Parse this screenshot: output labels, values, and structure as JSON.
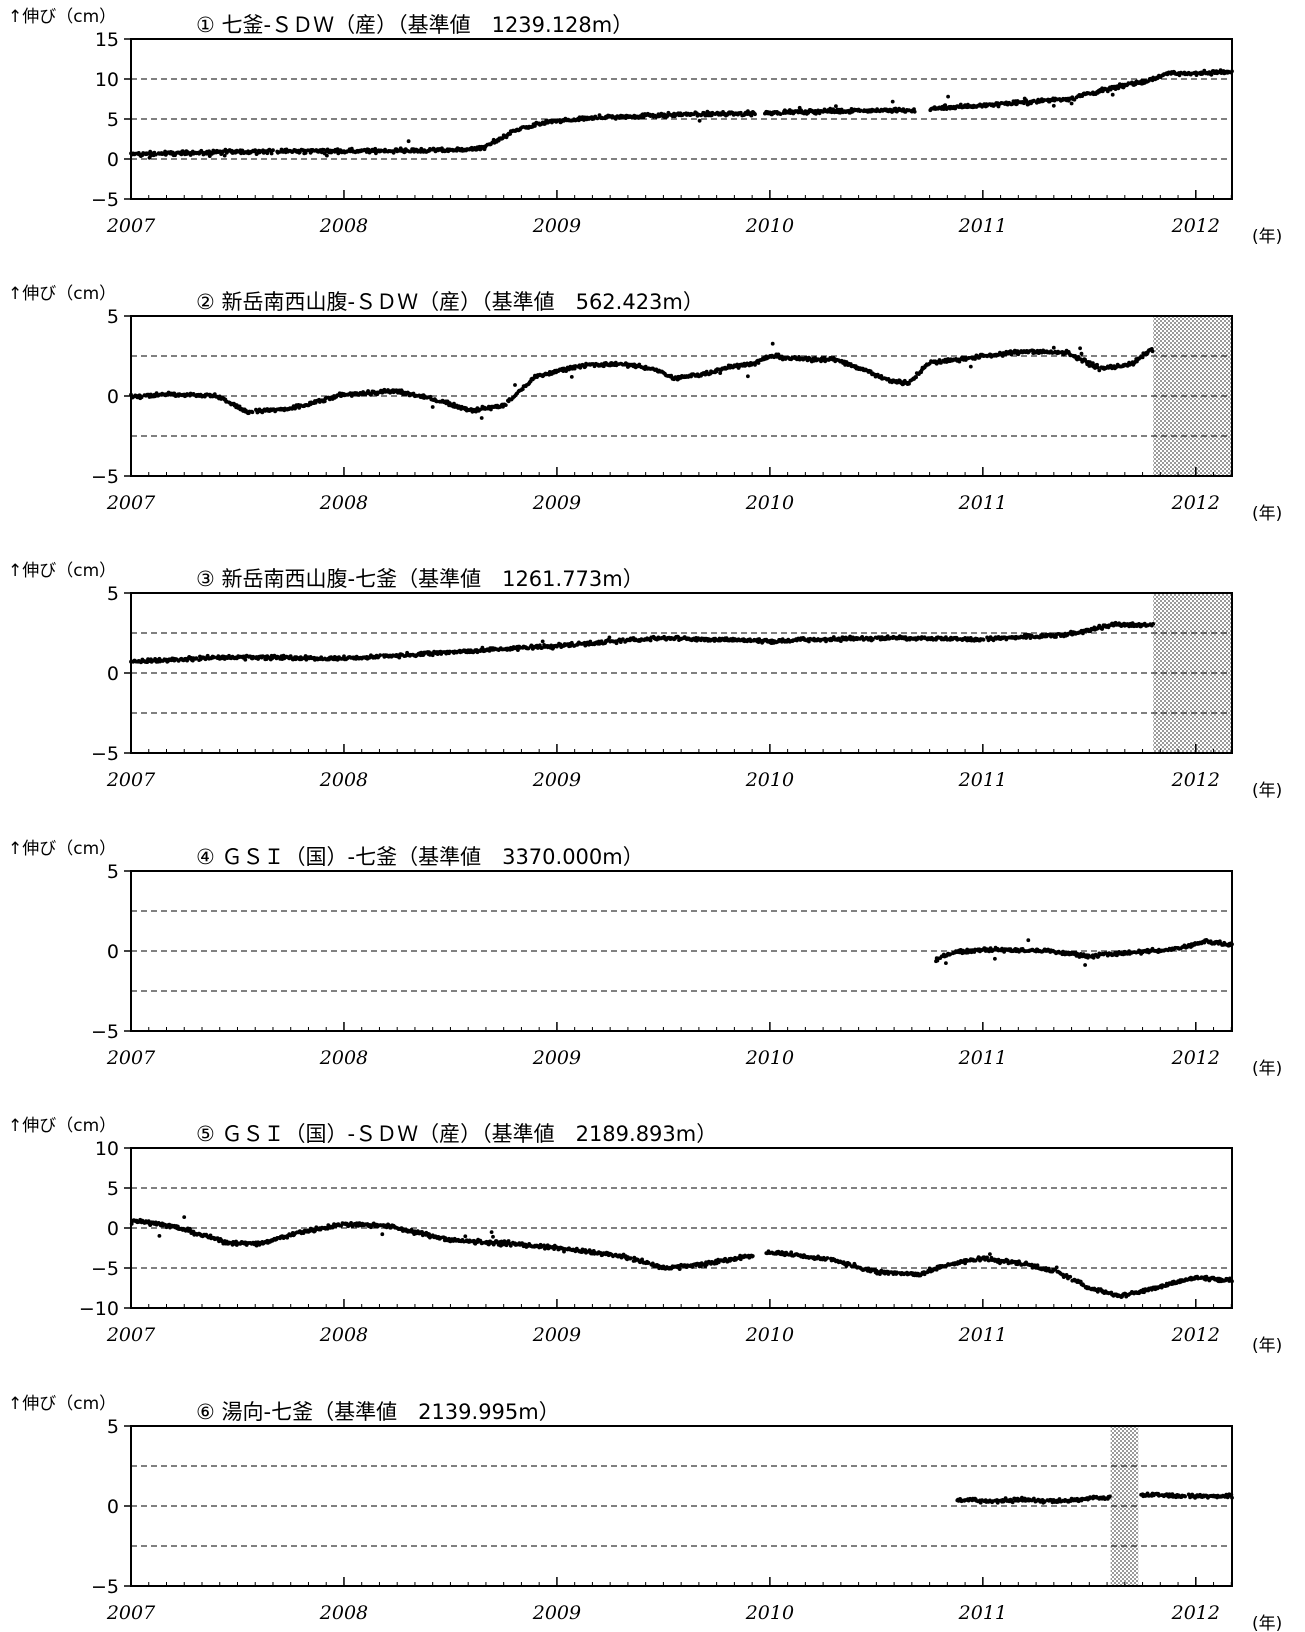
{
  "y_axis_label": "↑伸び（cm）",
  "x_unit_label": "(年)",
  "colors": {
    "data": "#000000",
    "hatch": "#9a9a9a",
    "grid": "#000000"
  },
  "chart_data": [
    {
      "type": "scatter",
      "title": "① 七釜-ＳＤＷ（産）（基準値　1239.128m）",
      "xlabel": "(年)",
      "ylabel": "↑伸び（cm）",
      "xlim": [
        2007,
        2012.17
      ],
      "ylim": [
        -5,
        15
      ],
      "yticks": [
        "15",
        "10",
        "5",
        "0",
        "−5"
      ],
      "yticks_values": [
        15,
        10,
        5,
        0,
        -5
      ],
      "gridlines_dashed": [
        10,
        5,
        0
      ],
      "xticks": [
        "2007",
        "2008",
        "2009",
        "2010",
        "2011",
        "2012"
      ],
      "xticks_values": [
        2007,
        2008,
        2009,
        2010,
        2011,
        2012
      ],
      "shaded_periods": [],
      "series": [
        {
          "x": [
            2007.0,
            2007.5,
            2008.0,
            2008.5,
            2008.65,
            2008.8,
            2008.95,
            2009.2,
            2009.5,
            2009.9,
            2010.0,
            2010.5,
            2010.7,
            2010.8,
            2011.0,
            2011.4,
            2011.6,
            2011.8,
            2011.85,
            2012.17
          ],
          "y": [
            0.6,
            0.9,
            1.0,
            1.1,
            1.3,
            3.5,
            4.6,
            5.2,
            5.5,
            5.7,
            5.8,
            6.1,
            6.0,
            6.4,
            6.7,
            7.5,
            8.8,
            10.0,
            10.6,
            10.9
          ]
        }
      ]
    },
    {
      "type": "scatter",
      "title": "② 新岳南西山腹-ＳＤＷ（産）（基準値　562.423m）",
      "xlabel": "(年)",
      "ylabel": "↑伸び（cm）",
      "xlim": [
        2007,
        2012.17
      ],
      "ylim": [
        -5,
        5
      ],
      "yticks": [
        "5",
        "0",
        "−5"
      ],
      "yticks_values": [
        5,
        0,
        -5
      ],
      "gridlines_dashed": [
        2.5,
        0,
        -2.5
      ],
      "xticks": [
        "2007",
        "2008",
        "2009",
        "2010",
        "2011",
        "2012"
      ],
      "xticks_values": [
        2007,
        2008,
        2009,
        2010,
        2011,
        2012
      ],
      "shaded_periods": [
        [
          2011.8,
          2012.17
        ]
      ],
      "series": [
        {
          "x": [
            2007.0,
            2007.2,
            2007.4,
            2007.55,
            2007.75,
            2008.0,
            2008.25,
            2008.45,
            2008.6,
            2008.75,
            2008.9,
            2009.1,
            2009.3,
            2009.45,
            2009.55,
            2009.7,
            2009.8,
            2009.92,
            2010.0,
            2010.15,
            2010.3,
            2010.45,
            2010.55,
            2010.65,
            2010.75,
            2010.9,
            2011.0,
            2011.2,
            2011.4,
            2011.55,
            2011.7,
            2011.8
          ],
          "y": [
            0.0,
            0.1,
            0.0,
            -1.0,
            -0.8,
            0.1,
            0.3,
            -0.3,
            -0.9,
            -0.6,
            1.2,
            1.9,
            2.0,
            1.7,
            1.1,
            1.4,
            1.8,
            2.0,
            2.5,
            2.3,
            2.3,
            1.6,
            1.0,
            0.8,
            2.1,
            2.3,
            2.5,
            2.8,
            2.7,
            1.7,
            2.0,
            3.0
          ]
        }
      ]
    },
    {
      "type": "scatter",
      "title": "③ 新岳南西山腹-七釜（基準値　1261.773m）",
      "xlabel": "(年)",
      "ylabel": "↑伸び（cm）",
      "xlim": [
        2007,
        2012.17
      ],
      "ylim": [
        -5,
        5
      ],
      "yticks": [
        "5",
        "0",
        "−5"
      ],
      "yticks_values": [
        5,
        0,
        -5
      ],
      "gridlines_dashed": [
        2.5,
        0,
        -2.5
      ],
      "xticks": [
        "2007",
        "2008",
        "2009",
        "2010",
        "2011",
        "2012"
      ],
      "xticks_values": [
        2007,
        2008,
        2009,
        2010,
        2011,
        2012
      ],
      "shaded_periods": [
        [
          2011.8,
          2012.17
        ]
      ],
      "series": [
        {
          "x": [
            2007.0,
            2007.5,
            2008.0,
            2008.5,
            2009.0,
            2009.5,
            2010.0,
            2010.5,
            2011.0,
            2011.4,
            2011.6,
            2011.8
          ],
          "y": [
            0.7,
            1.0,
            0.9,
            1.3,
            1.7,
            2.2,
            2.0,
            2.2,
            2.1,
            2.4,
            3.0,
            3.0
          ]
        }
      ]
    },
    {
      "type": "scatter",
      "title": "④ ＧＳＩ（国）-七釜（基準値　3370.000m）",
      "xlabel": "(年)",
      "ylabel": "↑伸び（cm）",
      "xlim": [
        2007,
        2012.17
      ],
      "ylim": [
        -5,
        5
      ],
      "yticks": [
        "5",
        "0",
        "−5"
      ],
      "yticks_values": [
        5,
        0,
        -5
      ],
      "gridlines_dashed": [
        2.5,
        0,
        -2.5
      ],
      "xticks": [
        "2007",
        "2008",
        "2009",
        "2010",
        "2011",
        "2012"
      ],
      "xticks_values": [
        2007,
        2008,
        2009,
        2010,
        2011,
        2012
      ],
      "shaded_periods": [],
      "series": [
        {
          "x": [
            2010.78,
            2010.85,
            2011.0,
            2011.3,
            2011.5,
            2011.7,
            2011.9,
            2012.05,
            2012.17
          ],
          "y": [
            -0.6,
            -0.1,
            0.1,
            0.0,
            -0.3,
            -0.1,
            0.1,
            0.6,
            0.4
          ]
        }
      ]
    },
    {
      "type": "scatter",
      "title": "⑤ ＧＳＩ（国）-ＳＤＷ（産）（基準値　2189.893m）",
      "xlabel": "(年)",
      "ylabel": "↑伸び（cm）",
      "xlim": [
        2007,
        2012.17
      ],
      "ylim": [
        -10,
        10
      ],
      "yticks": [
        "10",
        "5",
        "0",
        "−5",
        "−10"
      ],
      "yticks_values": [
        10,
        5,
        0,
        -5,
        -10
      ],
      "gridlines_dashed": [
        5,
        0,
        -5
      ],
      "xticks": [
        "2007",
        "2008",
        "2009",
        "2010",
        "2011",
        "2012"
      ],
      "xticks_values": [
        2007,
        2008,
        2009,
        2010,
        2011,
        2012
      ],
      "shaded_periods": [],
      "series": [
        {
          "x": [
            2007.0,
            2007.2,
            2007.45,
            2007.6,
            2007.8,
            2008.0,
            2008.2,
            2008.5,
            2008.8,
            2009.0,
            2009.3,
            2009.5,
            2009.7,
            2009.9,
            2010.0,
            2010.3,
            2010.5,
            2010.7,
            2010.85,
            2011.0,
            2011.2,
            2011.35,
            2011.5,
            2011.65,
            2011.8,
            2012.0,
            2012.17
          ],
          "y": [
            1.0,
            0.2,
            -1.8,
            -2.0,
            -0.5,
            0.5,
            0.3,
            -1.5,
            -2.0,
            -2.5,
            -3.5,
            -5.0,
            -4.5,
            -3.5,
            -3.0,
            -4.0,
            -5.5,
            -5.8,
            -4.5,
            -3.8,
            -4.5,
            -5.5,
            -7.5,
            -8.5,
            -7.5,
            -6.2,
            -6.5
          ]
        }
      ]
    },
    {
      "type": "scatter",
      "title": "⑥ 湯向-七釜（基準値　2139.995m）",
      "xlabel": "(年)",
      "ylabel": "↑伸び（cm）",
      "xlim": [
        2007,
        2012.17
      ],
      "ylim": [
        -5,
        5
      ],
      "yticks": [
        "5",
        "0",
        "−5"
      ],
      "yticks_values": [
        5,
        0,
        -5
      ],
      "gridlines_dashed": [
        2.5,
        0,
        -2.5
      ],
      "xticks": [
        "2007",
        "2008",
        "2009",
        "2010",
        "2011",
        "2012"
      ],
      "xticks_values": [
        2007,
        2008,
        2009,
        2010,
        2011,
        2012
      ],
      "shaded_periods": [
        [
          2011.6,
          2011.73
        ]
      ],
      "series": [
        {
          "x": [
            2010.88,
            2011.0,
            2011.2,
            2011.4,
            2011.5,
            2011.58,
            2011.8,
            2012.0,
            2012.17
          ],
          "y": [
            0.4,
            0.3,
            0.4,
            0.3,
            0.5,
            0.5,
            0.7,
            0.6,
            0.6
          ]
        }
      ]
    }
  ]
}
